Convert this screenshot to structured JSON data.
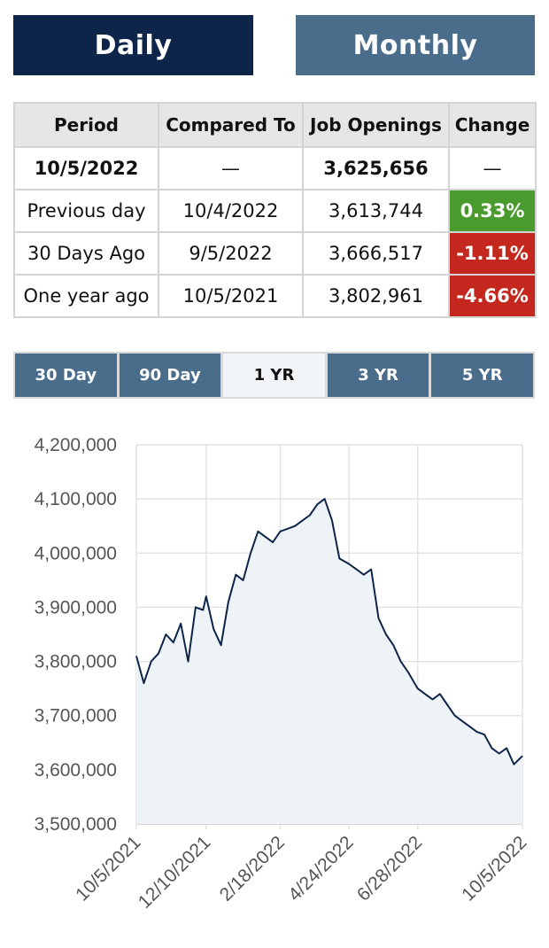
{
  "toggle": {
    "daily": "Daily",
    "monthly": "Monthly"
  },
  "table": {
    "headers": [
      "Period",
      "Compared To",
      "Job Openings",
      "Change"
    ],
    "rows": [
      {
        "period": "10/5/2022",
        "compared": "—",
        "openings": "3,625,656",
        "change": "—"
      },
      {
        "period": "Previous day",
        "compared": "10/4/2022",
        "openings": "3,613,744",
        "change": "0.33%"
      },
      {
        "period": "30 Days Ago",
        "compared": "9/5/2022",
        "openings": "3,666,517",
        "change": "-1.11%"
      },
      {
        "period": "One year ago",
        "compared": "10/5/2021",
        "openings": "3,802,961",
        "change": "-4.66%"
      }
    ]
  },
  "ranges": [
    "30 Day",
    "90 Day",
    "1 YR",
    "3 YR",
    "5 YR"
  ],
  "active_range": "1 YR",
  "colors": {
    "navy": "#0d2548",
    "steel": "#4a6d8c",
    "positive": "#4a9b2e",
    "negative": "#c4271e",
    "line": "#0d2548",
    "area": "#eef3f7"
  },
  "chart_data": {
    "type": "area",
    "title": "",
    "xlabel": "",
    "ylabel": "",
    "ylim": [
      3500000,
      4200000
    ],
    "y_ticks": [
      "3,500,000",
      "3,600,000",
      "3,700,000",
      "3,800,000",
      "3,900,000",
      "4,000,000",
      "4,100,000",
      "4,200,000"
    ],
    "x_ticks": [
      "10/5/2021",
      "12/10/2021",
      "2/18/2022",
      "4/24/2022",
      "6/28/2022",
      "10/5/2022"
    ],
    "grid": true,
    "series": [
      {
        "x": [
          "10/5/2021",
          "10/12/2021",
          "10/19/2021",
          "10/26/2021",
          "11/2/2021",
          "11/9/2021",
          "11/16/2021",
          "11/23/2021",
          "11/30/2021",
          "12/7/2021",
          "12/10/2021",
          "12/17/2021",
          "12/24/2021",
          "12/31/2021",
          "1/7/2022",
          "1/14/2022",
          "1/21/2022",
          "1/28/2022",
          "2/4/2022",
          "2/11/2022",
          "2/18/2022",
          "2/25/2022",
          "3/4/2022",
          "3/11/2022",
          "3/18/2022",
          "3/25/2022",
          "4/1/2022",
          "4/8/2022",
          "4/15/2022",
          "4/24/2022",
          "5/1/2022",
          "5/8/2022",
          "5/15/2022",
          "5/22/2022",
          "5/29/2022",
          "6/5/2022",
          "6/12/2022",
          "6/19/2022",
          "6/28/2022",
          "7/5/2022",
          "7/12/2022",
          "7/19/2022",
          "7/26/2022",
          "8/2/2022",
          "8/9/2022",
          "8/16/2022",
          "8/23/2022",
          "8/30/2022",
          "9/6/2022",
          "9/13/2022",
          "9/20/2022",
          "9/27/2022",
          "10/5/2022"
        ],
        "values": [
          3810000,
          3760000,
          3800000,
          3815000,
          3850000,
          3835000,
          3870000,
          3800000,
          3900000,
          3895000,
          3920000,
          3860000,
          3830000,
          3910000,
          3960000,
          3950000,
          4000000,
          4040000,
          4030000,
          4020000,
          4040000,
          4045000,
          4050000,
          4060000,
          4070000,
          4090000,
          4100000,
          4060000,
          3990000,
          3980000,
          3970000,
          3960000,
          3970000,
          3880000,
          3850000,
          3830000,
          3800000,
          3780000,
          3750000,
          3740000,
          3730000,
          3740000,
          3720000,
          3700000,
          3690000,
          3680000,
          3670000,
          3665000,
          3640000,
          3630000,
          3640000,
          3610000,
          3625656
        ]
      }
    ]
  }
}
